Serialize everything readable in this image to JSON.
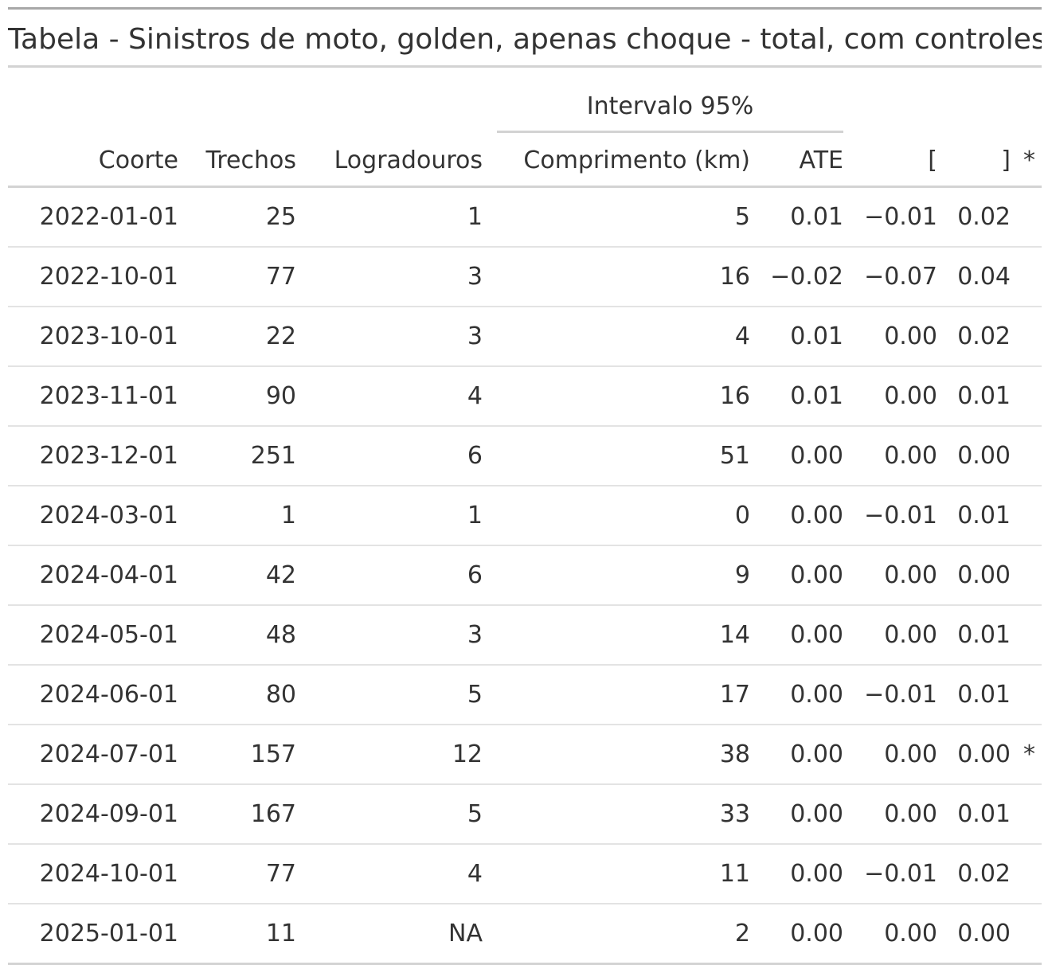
{
  "title": "Tabela - Sinistros de moto, golden, apenas choque - total, com controles",
  "spanner": "Intervalo 95%",
  "columns": {
    "coorte": "Coorte",
    "trechos": "Trechos",
    "logradouros": "Logradouros",
    "comprimento": "Comprimento (km)",
    "ate": "ATE",
    "lo": "[",
    "hi": "]",
    "sig": "*"
  },
  "rows": [
    {
      "coorte": "2022-01-01",
      "trechos": "25",
      "logradouros": "1",
      "comprimento": "5",
      "ate": "0.01",
      "lo": "−0.01",
      "hi": "0.02",
      "sig": ""
    },
    {
      "coorte": "2022-10-01",
      "trechos": "77",
      "logradouros": "3",
      "comprimento": "16",
      "ate": "−0.02",
      "lo": "−0.07",
      "hi": "0.04",
      "sig": ""
    },
    {
      "coorte": "2023-10-01",
      "trechos": "22",
      "logradouros": "3",
      "comprimento": "4",
      "ate": "0.01",
      "lo": "0.00",
      "hi": "0.02",
      "sig": ""
    },
    {
      "coorte": "2023-11-01",
      "trechos": "90",
      "logradouros": "4",
      "comprimento": "16",
      "ate": "0.01",
      "lo": "0.00",
      "hi": "0.01",
      "sig": ""
    },
    {
      "coorte": "2023-12-01",
      "trechos": "251",
      "logradouros": "6",
      "comprimento": "51",
      "ate": "0.00",
      "lo": "0.00",
      "hi": "0.00",
      "sig": ""
    },
    {
      "coorte": "2024-03-01",
      "trechos": "1",
      "logradouros": "1",
      "comprimento": "0",
      "ate": "0.00",
      "lo": "−0.01",
      "hi": "0.01",
      "sig": ""
    },
    {
      "coorte": "2024-04-01",
      "trechos": "42",
      "logradouros": "6",
      "comprimento": "9",
      "ate": "0.00",
      "lo": "0.00",
      "hi": "0.00",
      "sig": ""
    },
    {
      "coorte": "2024-05-01",
      "trechos": "48",
      "logradouros": "3",
      "comprimento": "14",
      "ate": "0.00",
      "lo": "0.00",
      "hi": "0.01",
      "sig": ""
    },
    {
      "coorte": "2024-06-01",
      "trechos": "80",
      "logradouros": "5",
      "comprimento": "17",
      "ate": "0.00",
      "lo": "−0.01",
      "hi": "0.01",
      "sig": ""
    },
    {
      "coorte": "2024-07-01",
      "trechos": "157",
      "logradouros": "12",
      "comprimento": "38",
      "ate": "0.00",
      "lo": "0.00",
      "hi": "0.00",
      "sig": "*"
    },
    {
      "coorte": "2024-09-01",
      "trechos": "167",
      "logradouros": "5",
      "comprimento": "33",
      "ate": "0.00",
      "lo": "0.00",
      "hi": "0.01",
      "sig": ""
    },
    {
      "coorte": "2024-10-01",
      "trechos": "77",
      "logradouros": "4",
      "comprimento": "11",
      "ate": "0.00",
      "lo": "−0.01",
      "hi": "0.02",
      "sig": ""
    },
    {
      "coorte": "2025-01-01",
      "trechos": "11",
      "logradouros": "NA",
      "comprimento": "2",
      "ate": "0.00",
      "lo": "0.00",
      "hi": "0.00",
      "sig": ""
    }
  ]
}
